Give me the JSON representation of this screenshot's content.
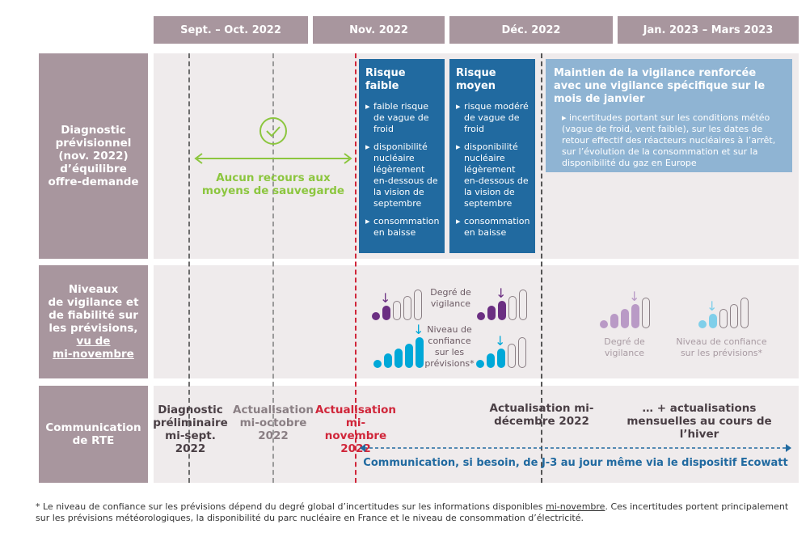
{
  "headers": [
    "Sept. – Oct. 2022",
    "Nov. 2022",
    "Déc. 2022",
    "Jan. 2023 – Mars 2023"
  ],
  "rows": {
    "diagnostic": "Diagnostic prévisionnel (nov. 2022) d’équilibre offre-demande",
    "niveaux_lines": [
      "Niveaux",
      "de vigilance et",
      "de fiabilité sur",
      "les prévisions,"
    ],
    "niveaux_underlined": [
      "vu de",
      "mi-novembre"
    ],
    "communication": "Communication de RTE"
  },
  "diagnostic": {
    "no_recourse": "Aucun recours aux moyens de sauvegarde",
    "risk_low": {
      "title": "Risque faible",
      "items": [
        "faible risque de vague de froid",
        "disponibilité nucléaire légèrement en-dessous de la vision de septembre",
        "consommation en baisse"
      ]
    },
    "risk_medium": {
      "title": "Risque moyen",
      "items": [
        "risque modéré de vague de froid",
        "disponibilité nucléaire légèrement en-dessous de la vision de septembre",
        "consommation en baisse"
      ]
    },
    "maintien": {
      "title": "Maintien de la vigilance renforcée avec une vigilance spécifique sur le mois de janvier",
      "items": [
        "incertitudes portant sur les conditions météo (vague de froid, vent faible), sur les dates de retour effectif des réacteurs nucléaires à l’arrêt, sur l’évolution de la consommation et sur la disponibilité du gaz en Europe"
      ]
    }
  },
  "niveaux": {
    "vigilance_label": "Degré de vigilance",
    "confidence_label": "Niveau de confiance sur les prévisions*",
    "levels_out_of": 5,
    "nov": {
      "vigilance": 2,
      "confidence": 5
    },
    "dec": {
      "vigilance": 3,
      "confidence": 3
    },
    "jan_mar": {
      "vigilance": 4,
      "confidence": 2
    },
    "colors": {
      "vigilance": "#6b2f82",
      "confidence": "#00a8d8",
      "vigilance_faded": "#b99ac6",
      "confidence_faded": "#7fcfea"
    }
  },
  "communication": {
    "sept": "Diagnostic préliminaire mi-sept. 2022",
    "oct": "Actualisation mi-octobre 2022",
    "nov": "Actualisation mi-novembre 2022",
    "dec": "Actualisation mi-décembre 2022",
    "winter": "… + actualisations mensuelles au cours de l’hiver",
    "ecowatt": "Communication, si besoin, de J-3 au jour même via le dispositif Ecowatt"
  },
  "footnote": {
    "before": "* Le niveau de confiance sur les prévisions dépend du degré global d’incertitudes sur les informations disponibles ",
    "underlined": "mi-novembre",
    "after": ". Ces incertitudes portent principalement sur les prévisions météorologiques, la disponibilité du parc nucléaire en France et le niveau de consommation d’électricité."
  }
}
